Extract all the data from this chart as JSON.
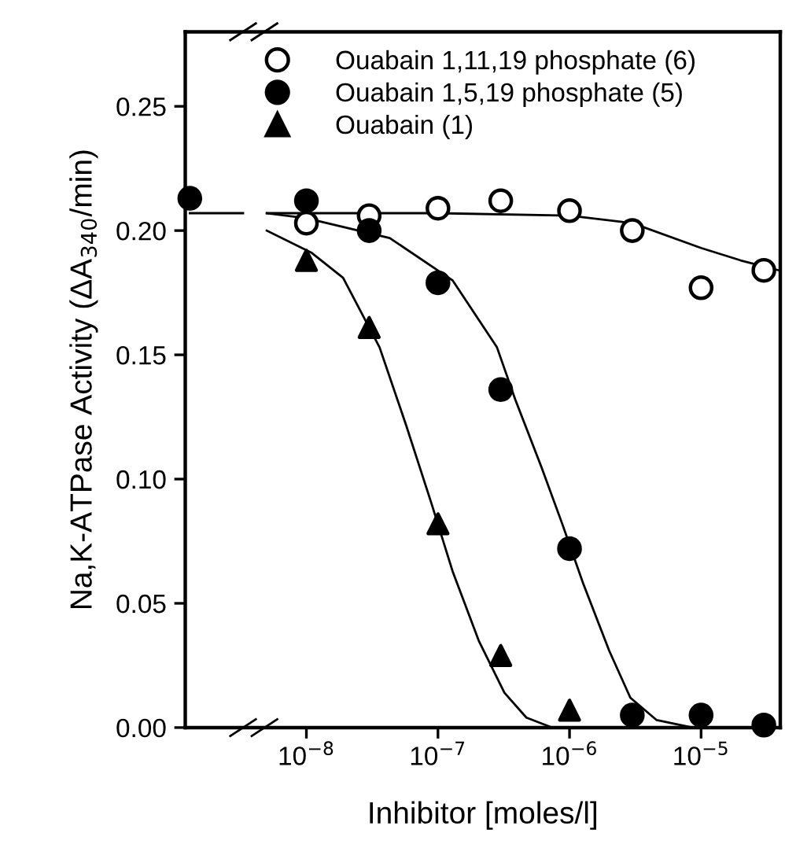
{
  "chart_data": {
    "type": "scatter",
    "xlabel": "Inhibitor [moles/l]",
    "ylabel": "Na,K-ATPase Activity (ΔA$_{340}$/min)",
    "log": "x",
    "xlim": [
      1.2e-09,
      4e-05
    ],
    "xticks": [
      {
        "value": 1e-08,
        "label": "10$^{−8}$"
      },
      {
        "value": 1e-07,
        "label": "10$^{−7}$"
      },
      {
        "value": 1e-06,
        "label": "10$^{−6}$"
      },
      {
        "value": 1e-05,
        "label": "10$^{−5}$"
      }
    ],
    "ylim": [
      0,
      0.28
    ],
    "yticks": [
      {
        "value": 0,
        "label": "0.00"
      },
      {
        "value": 0.05,
        "label": "0.05"
      },
      {
        "value": 0.1,
        "label": "0.10"
      },
      {
        "value": 0.15,
        "label": "0.15"
      },
      {
        "value": 0.2,
        "label": "0.20"
      },
      {
        "value": 0.25,
        "label": "0.25"
      }
    ],
    "grid": false,
    "legend": "top",
    "series": [
      {
        "name": "Ouabain 1,11,19 phosphate (6)",
        "marker": "circle",
        "color": "#ffffff",
        "x": [
          1e-08,
          3e-08,
          1e-07,
          3e-07,
          1e-06,
          3e-06,
          1e-05,
          3e-05
        ],
        "values": [
          0.203,
          0.206,
          0.209,
          0.212,
          0.208,
          0.2,
          0.177,
          0.184
        ]
      },
      {
        "name": "Ouabain 1,5,19 phosphate (5)",
        "marker": "circle",
        "color": "#000000",
        "x": [
          1.3e-09,
          1e-08,
          3e-08,
          1e-07,
          3e-07,
          1e-06,
          3e-06,
          1e-05,
          3e-05
        ],
        "values": [
          0.213,
          0.212,
          0.2,
          0.179,
          0.136,
          0.072,
          0.005,
          0.005,
          0.001
        ]
      },
      {
        "name": "Ouabain (1)",
        "marker": "triangle",
        "color": "#000000",
        "x": [
          1e-08,
          3e-08,
          1e-07,
          3e-07,
          1e-06
        ],
        "values": [
          0.188,
          0.161,
          0.082,
          0.029,
          0.007
        ]
      },
      {
        "type": "line",
        "color": "#000000",
        "x": [
          1.3e-09,
          3.3e-09,
          4.1e-09,
          5e-09,
          1e-07,
          1e-06,
          3e-06,
          1e-05,
          2e-05,
          3.9e-05
        ],
        "values": [
          0.207,
          0.207,
          null,
          0.207,
          0.207,
          0.206,
          0.203,
          0.193,
          0.188,
          0.184
        ]
      },
      {
        "type": "line",
        "color": "#000000",
        "x": [
          5e-09,
          1e-08,
          4.3e-08,
          1.29e-07,
          2.81e-07,
          3.87e-07,
          6.1e-07,
          8.8e-07,
          1.27e-06,
          2e-06,
          2.9e-06,
          4.6e-06,
          8.6e-06,
          3.9e-05
        ],
        "values": [
          0.207,
          0.205,
          0.197,
          0.18,
          0.153,
          0.132,
          0.105,
          0.082,
          0.058,
          0.031,
          0.012,
          0.003,
          0.0,
          0.0
        ]
      },
      {
        "type": "line",
        "color": "#000000",
        "x": [
          5e-09,
          1.1e-08,
          1.9e-08,
          3.6e-08,
          5.7e-08,
          8.95e-08,
          1.29e-07,
          2.04e-07,
          3.2e-07,
          4.7e-07,
          7.4e-07,
          3.9e-05
        ],
        "values": [
          0.2,
          0.191,
          0.181,
          0.153,
          0.122,
          0.09,
          0.063,
          0.035,
          0.014,
          0.004,
          0.0,
          0.0
        ]
      }
    ]
  }
}
